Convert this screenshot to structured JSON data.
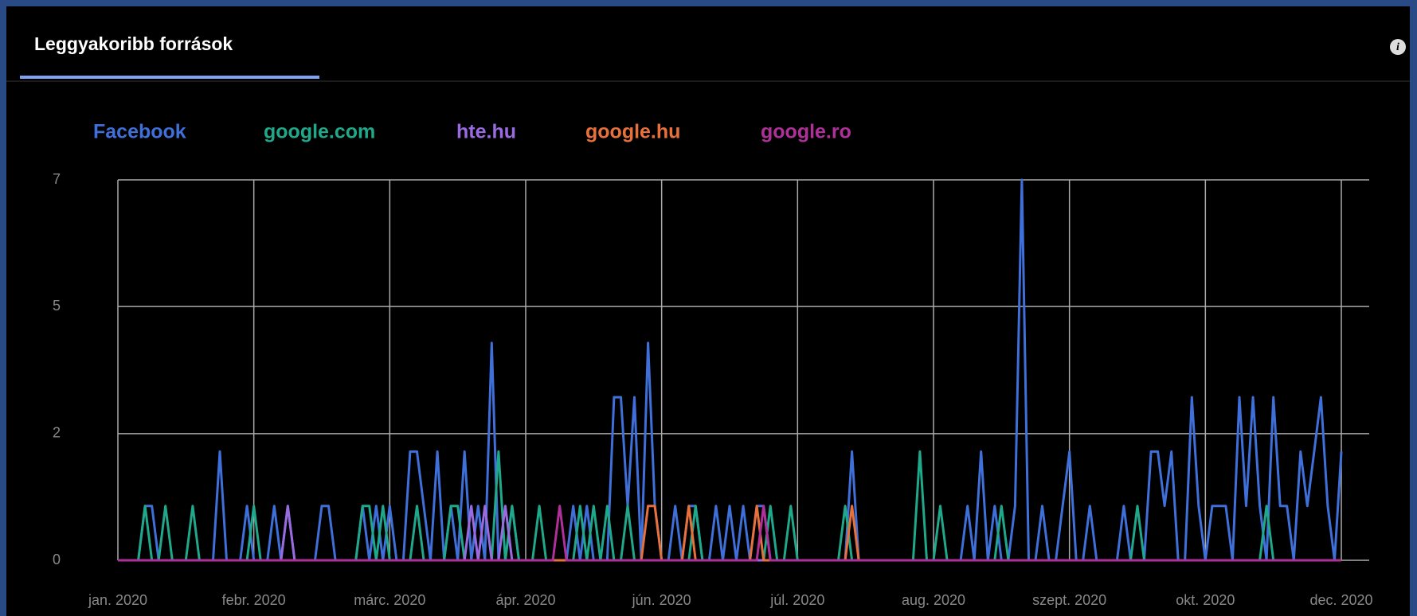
{
  "tab": "Leggyakoribb források",
  "chart_data": {
    "type": "line",
    "categories": [
      "jan. 2020",
      null,
      null,
      null,
      null,
      null,
      null,
      null,
      null,
      null,
      null,
      null,
      null,
      null,
      null,
      null,
      null,
      null,
      null,
      null,
      "febr. 2020",
      null,
      null,
      null,
      null,
      null,
      null,
      null,
      null,
      null,
      null,
      null,
      null,
      null,
      null,
      null,
      null,
      null,
      null,
      null,
      "márc. 2020",
      null,
      null,
      null,
      null,
      null,
      null,
      null,
      null,
      null,
      null,
      null,
      null,
      null,
      null,
      null,
      null,
      null,
      null,
      null,
      "ápr. 2020",
      null,
      null,
      null,
      null,
      null,
      null,
      null,
      null,
      null,
      null,
      null,
      null,
      null,
      null,
      null,
      null,
      null,
      null,
      null,
      "jún. 2020",
      null,
      null,
      null,
      null,
      null,
      null,
      null,
      null,
      null,
      null,
      null,
      null,
      null,
      null,
      null,
      null,
      null,
      null,
      null,
      "júl. 2020",
      null,
      null,
      null,
      null,
      null,
      null,
      null,
      null,
      null,
      null,
      null,
      null,
      null,
      null,
      null,
      null,
      null,
      null,
      null,
      "aug. 2020",
      null,
      null,
      null,
      null,
      null,
      null,
      null,
      null,
      null,
      null,
      null,
      null,
      null,
      null,
      null,
      null,
      null,
      null,
      null,
      "szept. 2020",
      null,
      null,
      null,
      null,
      null,
      null,
      null,
      null,
      null,
      null,
      null,
      null,
      null,
      null,
      null,
      null,
      null,
      null,
      null,
      "okt. 2020",
      null,
      null,
      null,
      null,
      null,
      null,
      null,
      null,
      null,
      null,
      null,
      null,
      null,
      null,
      null,
      null,
      null,
      null,
      null,
      "dec. 2020"
    ],
    "ylim": [
      0,
      7
    ],
    "yticks": [
      0,
      {
        "value": 2.33,
        "label": "2"
      },
      {
        "value": 4.67,
        "label": "5"
      },
      7
    ],
    "grid": true,
    "series": [
      {
        "name": "Facebook",
        "color": "#3f6fd8",
        "values": [
          0,
          0,
          0,
          0,
          1,
          1,
          0,
          0,
          0,
          0,
          0,
          0,
          0,
          0,
          0,
          2,
          0,
          0,
          0,
          1,
          0,
          0,
          0,
          1,
          0,
          1,
          0,
          0,
          0,
          0,
          1,
          1,
          0,
          0,
          0,
          0,
          1,
          0,
          1,
          0,
          1,
          0,
          0,
          2,
          2,
          1,
          0,
          2,
          0,
          1,
          0,
          2,
          0,
          1,
          0,
          4,
          0,
          0,
          1,
          0,
          0,
          0,
          0,
          0,
          0,
          0,
          0,
          1,
          0,
          1,
          0,
          0,
          0,
          3,
          3,
          1,
          3,
          0,
          4,
          1,
          0,
          0,
          1,
          0,
          1,
          1,
          0,
          0,
          1,
          0,
          1,
          0,
          1,
          0,
          1,
          1,
          0,
          0,
          0,
          0,
          0,
          0,
          0,
          0,
          0,
          0,
          0,
          0,
          2,
          0,
          0,
          0,
          0,
          0,
          0,
          0,
          0,
          0,
          0,
          0,
          0,
          0,
          0,
          0,
          0,
          1,
          0,
          2,
          0,
          1,
          0,
          0,
          1,
          7,
          0,
          0,
          1,
          0,
          0,
          1,
          2,
          0,
          0,
          1,
          0,
          0,
          0,
          0,
          1,
          0,
          0,
          0,
          2,
          2,
          1,
          2,
          0,
          0,
          3,
          1,
          0,
          1,
          1,
          1,
          0,
          3,
          1,
          3,
          1,
          0,
          3,
          1,
          1,
          0,
          2,
          1,
          2,
          3,
          1,
          0,
          2
        ]
      },
      {
        "name": "google.com",
        "color": "#1fa88a",
        "values": [
          0,
          0,
          0,
          0,
          1,
          0,
          0,
          1,
          0,
          0,
          0,
          1,
          0,
          0,
          0,
          0,
          0,
          0,
          0,
          0,
          1,
          0,
          0,
          0,
          0,
          0,
          0,
          0,
          0,
          0,
          0,
          0,
          0,
          0,
          0,
          0,
          1,
          1,
          0,
          1,
          0,
          0,
          0,
          0,
          1,
          0,
          0,
          0,
          0,
          1,
          1,
          0,
          0,
          0,
          0,
          0,
          2,
          0,
          1,
          0,
          0,
          0,
          1,
          0,
          0,
          0,
          0,
          0,
          1,
          0,
          1,
          0,
          1,
          0,
          0,
          1,
          0,
          0,
          0,
          0,
          0,
          0,
          0,
          0,
          0,
          1,
          0,
          0,
          0,
          0,
          0,
          0,
          0,
          0,
          0,
          0,
          1,
          0,
          0,
          1,
          0,
          0,
          0,
          0,
          0,
          0,
          0,
          1,
          0,
          0,
          0,
          0,
          0,
          0,
          0,
          0,
          0,
          0,
          2,
          0,
          0,
          1,
          0,
          0,
          0,
          0,
          0,
          0,
          0,
          0,
          1,
          0,
          0,
          0,
          0,
          0,
          0,
          0,
          0,
          0,
          0,
          0,
          0,
          0,
          0,
          0,
          0,
          0,
          0,
          0,
          1,
          0,
          0,
          0,
          0,
          0,
          0,
          0,
          0,
          0,
          0,
          0,
          0,
          0,
          0,
          0,
          0,
          0,
          0,
          1,
          0,
          0,
          0,
          0,
          0,
          0,
          0,
          0,
          0,
          0,
          0
        ]
      },
      {
        "name": "hte.hu",
        "color": "#9a6ae0",
        "values": [
          0,
          0,
          0,
          0,
          0,
          0,
          0,
          0,
          0,
          0,
          0,
          0,
          0,
          0,
          0,
          0,
          0,
          0,
          0,
          0,
          0,
          0,
          0,
          0,
          0,
          1,
          0,
          0,
          0,
          0,
          0,
          0,
          0,
          0,
          0,
          0,
          0,
          0,
          0,
          0,
          0,
          0,
          0,
          0,
          0,
          0,
          0,
          0,
          0,
          0,
          0,
          0,
          1,
          0,
          1,
          0,
          0,
          1,
          0,
          0,
          0,
          0,
          0,
          0,
          0,
          0,
          0,
          0,
          0,
          0,
          0,
          0,
          0,
          0,
          0,
          0,
          0,
          0,
          0,
          0,
          0,
          0,
          0,
          0,
          0,
          0,
          0,
          0,
          0,
          0,
          0,
          0,
          0,
          0,
          0,
          0,
          0,
          0,
          0,
          0,
          0,
          0,
          0,
          0,
          0,
          0,
          0,
          0,
          0,
          0,
          0,
          0,
          0,
          0,
          0,
          0,
          0,
          0,
          0,
          0,
          0,
          0,
          0,
          0,
          0,
          0,
          0,
          0,
          0,
          0,
          0,
          0,
          0,
          0,
          0,
          0,
          0,
          0,
          0,
          0,
          0,
          0,
          0,
          0,
          0,
          0,
          0,
          0,
          0,
          0,
          0,
          0,
          0,
          0,
          0,
          0,
          0,
          0,
          0,
          0,
          0,
          0,
          0,
          0,
          0,
          0,
          0,
          0,
          0,
          0,
          0,
          0,
          0,
          0,
          0,
          0,
          0,
          0,
          0,
          0,
          0
        ]
      },
      {
        "name": "google.hu",
        "color": "#e8703a",
        "values": [
          0,
          0,
          0,
          0,
          0,
          0,
          0,
          0,
          0,
          0,
          0,
          0,
          0,
          0,
          0,
          0,
          0,
          0,
          0,
          0,
          0,
          0,
          0,
          0,
          0,
          0,
          0,
          0,
          0,
          0,
          0,
          0,
          0,
          0,
          0,
          0,
          0,
          0,
          0,
          0,
          0,
          0,
          0,
          0,
          0,
          0,
          0,
          0,
          0,
          0,
          0,
          0,
          0,
          0,
          0,
          0,
          0,
          0,
          0,
          0,
          0,
          0,
          0,
          0,
          0,
          0,
          0,
          0,
          0,
          0,
          0,
          0,
          0,
          0,
          0,
          0,
          0,
          0,
          1,
          1,
          0,
          0,
          0,
          0,
          1,
          0,
          0,
          0,
          0,
          0,
          0,
          0,
          0,
          0,
          1,
          0,
          0,
          0,
          0,
          0,
          0,
          0,
          0,
          0,
          0,
          0,
          0,
          0,
          1,
          0,
          0,
          0,
          0,
          0,
          0,
          0,
          0,
          0,
          0,
          0,
          0,
          0,
          0,
          0,
          0,
          0,
          0,
          0,
          0,
          0,
          0,
          0,
          0,
          0,
          0,
          0,
          0,
          0,
          0,
          0,
          0,
          0,
          0,
          0,
          0,
          0,
          0,
          0,
          0,
          0,
          0,
          0,
          0,
          0,
          0,
          0,
          0,
          0,
          0,
          0,
          0,
          0,
          0,
          0,
          0,
          0,
          0,
          0,
          0,
          0,
          0,
          0,
          0,
          0,
          0,
          0,
          0,
          0,
          0,
          0,
          0
        ]
      },
      {
        "name": "google.ro",
        "color": "#b0309a",
        "values": [
          0,
          0,
          0,
          0,
          0,
          0,
          0,
          0,
          0,
          0,
          0,
          0,
          0,
          0,
          0,
          0,
          0,
          0,
          0,
          0,
          0,
          0,
          0,
          0,
          0,
          0,
          0,
          0,
          0,
          0,
          0,
          0,
          0,
          0,
          0,
          0,
          0,
          0,
          0,
          0,
          0,
          0,
          0,
          0,
          0,
          0,
          0,
          0,
          0,
          0,
          0,
          0,
          0,
          0,
          0,
          0,
          0,
          0,
          0,
          0,
          0,
          0,
          0,
          0,
          0,
          1,
          0,
          0,
          0,
          0,
          0,
          0,
          0,
          0,
          0,
          0,
          0,
          0,
          0,
          0,
          0,
          0,
          0,
          0,
          0,
          0,
          0,
          0,
          0,
          0,
          0,
          0,
          0,
          0,
          0,
          1,
          0,
          0,
          0,
          0,
          0,
          0,
          0,
          0,
          0,
          0,
          0,
          0,
          0,
          0,
          0,
          0,
          0,
          0,
          0,
          0,
          0,
          0,
          0,
          0,
          0,
          0,
          0,
          0,
          0,
          0,
          0,
          0,
          0,
          0,
          0,
          0,
          0,
          0,
          0,
          0,
          0,
          0,
          0,
          0,
          0,
          0,
          0,
          0,
          0,
          0,
          0,
          0,
          0,
          0,
          0,
          0,
          0,
          0,
          0,
          0,
          0,
          0,
          0,
          0,
          0,
          0,
          0,
          0,
          0,
          0,
          0,
          0,
          0,
          0,
          0,
          0,
          0,
          0,
          0,
          0,
          0,
          0,
          0,
          0,
          0
        ]
      }
    ]
  }
}
